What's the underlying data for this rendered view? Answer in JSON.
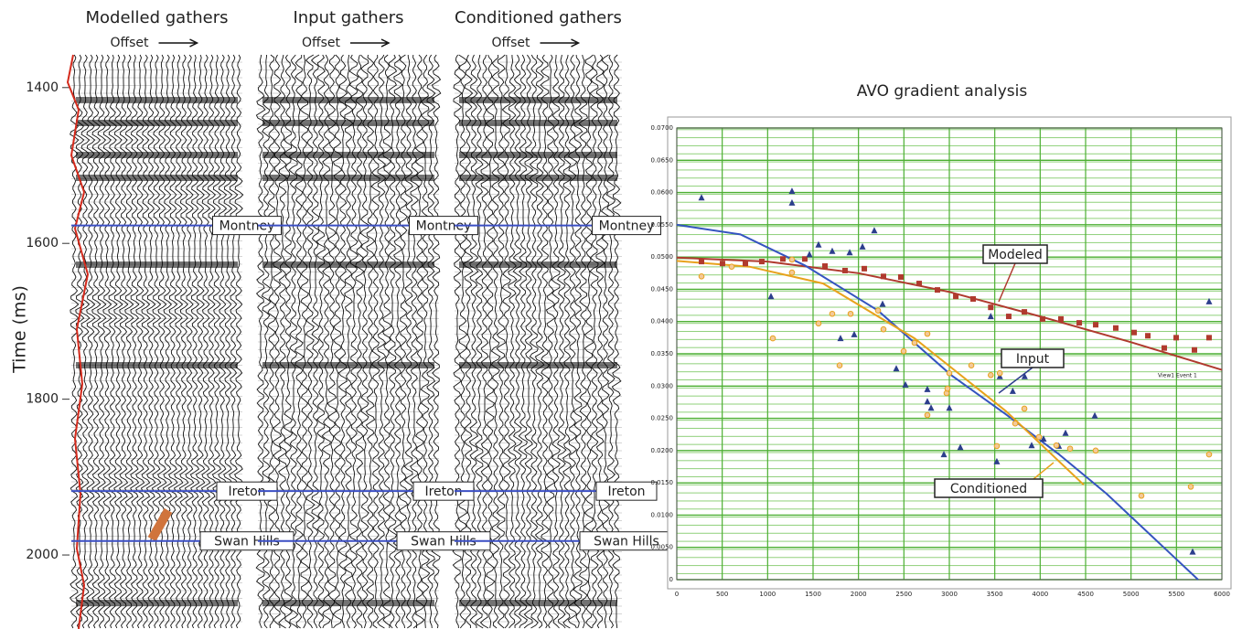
{
  "chart_data": [
    {
      "type": "seismic",
      "ylabel": "Time (ms)",
      "ylim": [
        1358,
        2095
      ],
      "yticks": [
        1400,
        1600,
        1800,
        2000
      ],
      "panels": [
        {
          "title": "Modelled gathers",
          "xlabel": "Offset"
        },
        {
          "title": "Input gathers",
          "xlabel": "Offset"
        },
        {
          "title": "Conditioned gathers",
          "xlabel": "Offset"
        }
      ],
      "horizons": [
        {
          "name": "Montney",
          "time": 1577,
          "color": "#3b4fc4"
        },
        {
          "name": "Ireton",
          "time": 1918,
          "color": "#3b4fc4"
        },
        {
          "name": "Swan Hills",
          "time": 1982,
          "color": "#3b4fc4"
        }
      ]
    },
    {
      "type": "scatter",
      "title": "AVO gradient analysis",
      "xlim": [
        0,
        6000
      ],
      "xticks": [
        0,
        500,
        1000,
        1500,
        2000,
        2500,
        3000,
        3500,
        4000,
        4500,
        5000,
        5500,
        6000
      ],
      "ylim": [
        0,
        0.07
      ],
      "yticks": [
        {
          "value": 0,
          "label": "0"
        },
        {
          "value": 0.005,
          "label": "0.0050"
        },
        {
          "value": 0.01,
          "label": "0.0100"
        },
        {
          "value": 0.015,
          "label": "0.0150"
        },
        {
          "value": 0.02,
          "label": "0.0200"
        },
        {
          "value": 0.025,
          "label": "0.0250"
        },
        {
          "value": 0.03,
          "label": "0.0300"
        },
        {
          "value": 0.035,
          "label": "0.0350"
        },
        {
          "value": 0.04,
          "label": "0.0400"
        },
        {
          "value": 0.045,
          "label": "0.0450"
        },
        {
          "value": 0.05,
          "label": "0.0500"
        },
        {
          "value": 0.055,
          "label": "0.0550"
        },
        {
          "value": 0.06,
          "label": "0.0600"
        },
        {
          "value": 0.065,
          "label": "0.0650"
        },
        {
          "value": 0.07,
          "label": "0.0700"
        }
      ],
      "grid": true,
      "grid_color": "#4caf32",
      "series": [
        {
          "name": "Modeled",
          "color": "#b03a2e",
          "marker": "square",
          "x": [
            272,
            503,
            755,
            936,
            1168,
            1409,
            1631,
            1852,
            2064,
            2275,
            2466,
            2668,
            2869,
            3071,
            3262,
            3456,
            3654,
            3826,
            4027,
            4228,
            4430,
            4611,
            4832,
            5034,
            5185,
            5366,
            5497,
            5698,
            5859
          ],
          "values": [
            0.0493,
            0.049,
            0.049,
            0.0493,
            0.0497,
            0.0497,
            0.0486,
            0.0479,
            0.0482,
            0.047,
            0.0469,
            0.0459,
            0.0449,
            0.0439,
            0.0435,
            0.0422,
            0.0408,
            0.0415,
            0.0404,
            0.0404,
            0.0398,
            0.0395,
            0.039,
            0.0383,
            0.0378,
            0.0359,
            0.0375,
            0.0356,
            0.0375
          ],
          "fit_x": [
            0,
            1000,
            2000,
            3000,
            4000,
            5000,
            6000
          ],
          "fit_values": [
            0.0499,
            0.0493,
            0.0475,
            0.0446,
            0.0408,
            0.0368,
            0.0325
          ]
        },
        {
          "name": "Input",
          "color": "#2c3e8c",
          "marker": "triangle",
          "x": [
            272,
            1037,
            1268,
            1268,
            1460,
            1560,
            1711,
            1802,
            1903,
            1953,
            2044,
            2174,
            2265,
            2416,
            2517,
            2758,
            2758,
            2799,
            2940,
            3000,
            3121,
            3456,
            3523,
            3556,
            3698,
            3829,
            3906,
            4037,
            4205,
            4279,
            4601,
            5678,
            5859
          ],
          "values": [
            0.0592,
            0.0439,
            0.0602,
            0.0584,
            0.0504,
            0.0519,
            0.0509,
            0.0374,
            0.0507,
            0.038,
            0.0516,
            0.0541,
            0.0427,
            0.0327,
            0.0302,
            0.0295,
            0.0276,
            0.0266,
            0.0194,
            0.0266,
            0.0205,
            0.0408,
            0.0183,
            0.0315,
            0.0292,
            0.0315,
            0.0208,
            0.0218,
            0.0207,
            0.0227,
            0.0254,
            0.0043,
            0.0431
          ],
          "fit_x": [
            0,
            700,
            1409,
            2215,
            3020,
            3624,
            4200,
            4732,
            5738
          ],
          "fit_values": [
            0.055,
            0.0535,
            0.0487,
            0.0417,
            0.0317,
            0.0256,
            0.0195,
            0.0133,
            0
          ]
        },
        {
          "name": "Conditioned",
          "color": "#e8a21c",
          "marker": "circle",
          "x": [
            272,
            604,
            1057,
            1268,
            1268,
            1560,
            1711,
            1792,
            1913,
            2215,
            2275,
            2497,
            2617,
            2758,
            2758,
            2970,
            2980,
            3000,
            3242,
            3456,
            3523,
            3556,
            3725,
            3826,
            3987,
            4178,
            4329,
            4611,
            5114,
            5658,
            5859
          ],
          "values": [
            0.047,
            0.0485,
            0.0374,
            0.0476,
            0.0496,
            0.0397,
            0.0412,
            0.0332,
            0.0412,
            0.0417,
            0.0388,
            0.0354,
            0.0367,
            0.0255,
            0.0381,
            0.0289,
            0.0296,
            0.032,
            0.0332,
            0.0317,
            0.0207,
            0.032,
            0.0242,
            0.0265,
            0.0221,
            0.0208,
            0.0203,
            0.02,
            0.013,
            0.0144,
            0.0194
          ],
          "fit_x": [
            0,
            800,
            1611,
            2617,
            3624,
            4480
          ],
          "fit_values": [
            0.0494,
            0.0485,
            0.0459,
            0.0374,
            0.0261,
            0.0147
          ]
        }
      ],
      "annotations": [
        {
          "text": "View1 Event 1"
        }
      ]
    }
  ]
}
